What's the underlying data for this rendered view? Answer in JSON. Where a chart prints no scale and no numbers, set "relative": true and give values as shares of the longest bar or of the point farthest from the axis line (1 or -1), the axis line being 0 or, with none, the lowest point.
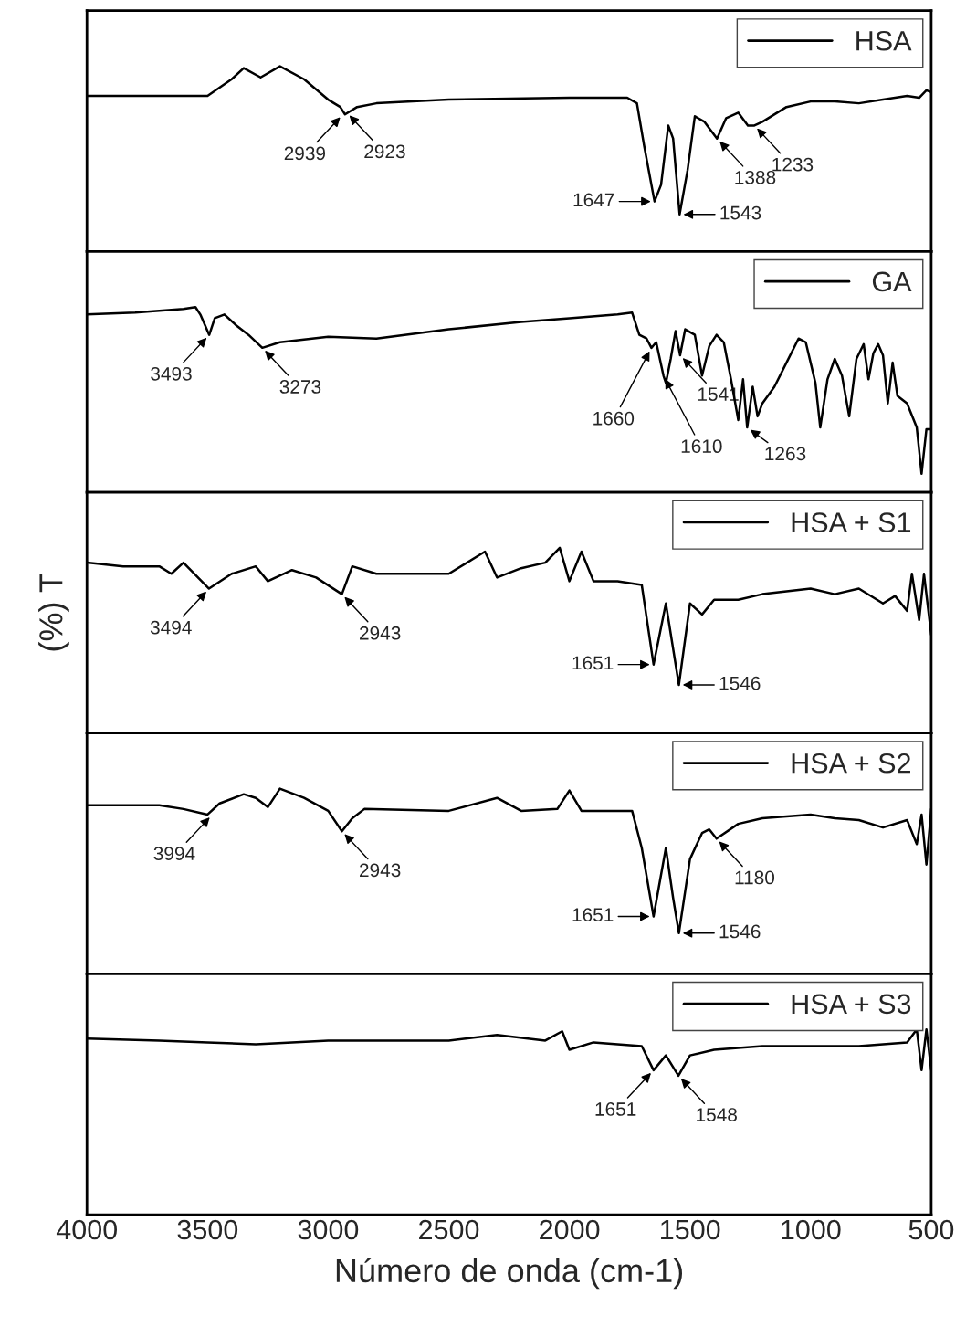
{
  "chart_data": [
    {
      "type": "line",
      "relative": true,
      "xlim": [
        4000,
        500
      ],
      "tick_labels": false,
      "legend": "top right",
      "series": [
        {
          "name": "HSA",
          "color": "#000000",
          "x": [
            4000,
            3700,
            3500,
            3400,
            3350,
            3280,
            3200,
            3100,
            3000,
            2950,
            2930,
            2880,
            2800,
            2500,
            2000,
            1760,
            1720,
            1690,
            1647,
            1620,
            1590,
            1570,
            1543,
            1510,
            1480,
            1440,
            1388,
            1350,
            1300,
            1260,
            1233,
            1200,
            1100,
            1000,
            900,
            800,
            700,
            600,
            550,
            520,
            500
          ],
          "values": [
            0.84,
            0.84,
            0.84,
            0.93,
            0.99,
            0.94,
            1.0,
            0.93,
            0.82,
            0.78,
            0.74,
            0.78,
            0.8,
            0.82,
            0.83,
            0.83,
            0.8,
            0.57,
            0.27,
            0.36,
            0.68,
            0.61,
            0.2,
            0.44,
            0.73,
            0.7,
            0.61,
            0.72,
            0.75,
            0.68,
            0.68,
            0.7,
            0.78,
            0.81,
            0.81,
            0.8,
            0.82,
            0.84,
            0.83,
            0.87,
            0.86
          ]
        }
      ],
      "annotations": [
        {
          "text": "2939",
          "x": 2939,
          "y": 0.74
        },
        {
          "text": "2923",
          "x": 2923,
          "y": 0.75
        },
        {
          "text": "1647",
          "x": 1647,
          "y": 0.27
        },
        {
          "text": "1543",
          "x": 1543,
          "y": 0.2
        },
        {
          "text": "1388",
          "x": 1388,
          "y": 0.61
        },
        {
          "text": "1233",
          "x": 1233,
          "y": 0.68
        }
      ]
    },
    {
      "type": "line",
      "relative": true,
      "xlim": [
        4000,
        500
      ],
      "tick_labels": false,
      "legend": "top right",
      "series": [
        {
          "name": "GA",
          "color": "#000000",
          "x": [
            4000,
            3800,
            3600,
            3550,
            3530,
            3493,
            3470,
            3430,
            3380,
            3330,
            3273,
            3200,
            3000,
            2800,
            2500,
            2200,
            2000,
            1800,
            1740,
            1710,
            1680,
            1660,
            1640,
            1610,
            1600,
            1580,
            1560,
            1541,
            1520,
            1480,
            1450,
            1420,
            1390,
            1360,
            1330,
            1300,
            1280,
            1263,
            1240,
            1220,
            1200,
            1150,
            1100,
            1050,
            1020,
            980,
            960,
            930,
            900,
            870,
            840,
            810,
            780,
            760,
            740,
            720,
            700,
            680,
            660,
            640,
            600,
            560,
            540,
            520,
            500
          ],
          "values": [
            0.96,
            0.97,
            0.99,
            1.0,
            0.96,
            0.85,
            0.94,
            0.96,
            0.9,
            0.85,
            0.78,
            0.81,
            0.84,
            0.83,
            0.88,
            0.92,
            0.94,
            0.96,
            0.97,
            0.85,
            0.83,
            0.78,
            0.81,
            0.63,
            0.59,
            0.72,
            0.87,
            0.74,
            0.88,
            0.85,
            0.63,
            0.79,
            0.85,
            0.81,
            0.61,
            0.39,
            0.61,
            0.35,
            0.57,
            0.41,
            0.48,
            0.57,
            0.7,
            0.83,
            0.81,
            0.59,
            0.35,
            0.61,
            0.72,
            0.63,
            0.41,
            0.72,
            0.8,
            0.61,
            0.75,
            0.8,
            0.74,
            0.48,
            0.7,
            0.52,
            0.48,
            0.35,
            0.1,
            0.34,
            0.34
          ]
        }
      ],
      "annotations": [
        {
          "text": "3493",
          "x": 3493,
          "y": 0.85
        },
        {
          "text": "3273",
          "x": 3273,
          "y": 0.78
        },
        {
          "text": "1660",
          "x": 1660,
          "y": 0.78
        },
        {
          "text": "1610",
          "x": 1610,
          "y": 0.63
        },
        {
          "text": "1541",
          "x": 1541,
          "y": 0.74
        },
        {
          "text": "1263",
          "x": 1263,
          "y": 0.35
        }
      ]
    },
    {
      "type": "line",
      "relative": true,
      "xlim": [
        4000,
        500
      ],
      "tick_labels": false,
      "legend": "top right",
      "ylabel": "(%) T",
      "series": [
        {
          "name": "HSA + S1",
          "color": "#000000",
          "x": [
            4000,
            3850,
            3700,
            3650,
            3600,
            3494,
            3400,
            3300,
            3250,
            3150,
            3050,
            2943,
            2900,
            2800,
            2500,
            2350,
            2300,
            2200,
            2100,
            2040,
            2000,
            1950,
            1900,
            1800,
            1700,
            1651,
            1600,
            1546,
            1500,
            1450,
            1400,
            1300,
            1200,
            1000,
            900,
            800,
            700,
            650,
            600,
            580,
            550,
            530,
            500
          ],
          "values": [
            0.92,
            0.9,
            0.9,
            0.86,
            0.92,
            0.78,
            0.86,
            0.9,
            0.82,
            0.88,
            0.84,
            0.75,
            0.9,
            0.86,
            0.86,
            0.98,
            0.84,
            0.89,
            0.92,
            1.0,
            0.82,
            0.98,
            0.82,
            0.82,
            0.8,
            0.37,
            0.7,
            0.26,
            0.7,
            0.64,
            0.72,
            0.72,
            0.75,
            0.78,
            0.75,
            0.78,
            0.7,
            0.74,
            0.66,
            0.86,
            0.61,
            0.86,
            0.53
          ]
        }
      ],
      "annotations": [
        {
          "text": "3494",
          "x": 3494,
          "y": 0.78
        },
        {
          "text": "2943",
          "x": 2943,
          "y": 0.75
        },
        {
          "text": "1651",
          "x": 1651,
          "y": 0.37
        },
        {
          "text": "1546",
          "x": 1546,
          "y": 0.26
        }
      ]
    },
    {
      "type": "line",
      "relative": true,
      "xlim": [
        4000,
        500
      ],
      "tick_labels": false,
      "legend": "top right",
      "series": [
        {
          "name": "HSA + S2",
          "color": "#000000",
          "x": [
            4000,
            3700,
            3600,
            3500,
            3450,
            3350,
            3300,
            3250,
            3200,
            3100,
            3000,
            2943,
            2900,
            2850,
            2500,
            2300,
            2200,
            2050,
            2000,
            1950,
            1800,
            1740,
            1700,
            1651,
            1600,
            1570,
            1546,
            1500,
            1450,
            1420,
            1390,
            1300,
            1200,
            1000,
            900,
            800,
            700,
            600,
            560,
            540,
            520,
            500
          ],
          "values": [
            0.91,
            0.91,
            0.89,
            0.86,
            0.92,
            0.97,
            0.95,
            0.9,
            1.0,
            0.95,
            0.88,
            0.77,
            0.84,
            0.89,
            0.88,
            0.95,
            0.88,
            0.89,
            0.99,
            0.88,
            0.88,
            0.88,
            0.68,
            0.31,
            0.68,
            0.41,
            0.22,
            0.62,
            0.76,
            0.78,
            0.73,
            0.81,
            0.84,
            0.86,
            0.84,
            0.83,
            0.79,
            0.83,
            0.7,
            0.86,
            0.59,
            0.89
          ]
        }
      ],
      "annotations": [
        {
          "text": "3994",
          "x": 3480,
          "y": 0.86
        },
        {
          "text": "2943",
          "x": 2943,
          "y": 0.77
        },
        {
          "text": "1651",
          "x": 1651,
          "y": 0.31
        },
        {
          "text": "1546",
          "x": 1546,
          "y": 0.22
        },
        {
          "text": "1180",
          "x": 1390,
          "y": 0.73
        }
      ]
    },
    {
      "type": "line",
      "relative": true,
      "xlim": [
        4000,
        500
      ],
      "xticks": [
        4000,
        3500,
        3000,
        2500,
        2000,
        1500,
        1000,
        500
      ],
      "tick_labels": "x",
      "legend": "top right",
      "xlabel": "Número de onda (cm-1)",
      "series": [
        {
          "name": "HSA + S3",
          "color": "#000000",
          "x": [
            4000,
            3700,
            3500,
            3300,
            3000,
            2500,
            2300,
            2100,
            2030,
            2000,
            1900,
            1700,
            1651,
            1600,
            1548,
            1500,
            1400,
            1200,
            1000,
            800,
            600,
            560,
            540,
            520,
            500
          ],
          "values": [
            0.95,
            0.94,
            0.93,
            0.92,
            0.94,
            0.94,
            0.97,
            0.94,
            0.99,
            0.89,
            0.93,
            0.91,
            0.78,
            0.86,
            0.75,
            0.86,
            0.89,
            0.91,
            0.91,
            0.91,
            0.93,
            1.0,
            0.78,
            1.0,
            0.78
          ]
        }
      ],
      "annotations": [
        {
          "text": "1651",
          "x": 1651,
          "y": 0.78
        },
        {
          "text": "1548",
          "x": 1548,
          "y": 0.75
        }
      ]
    }
  ]
}
